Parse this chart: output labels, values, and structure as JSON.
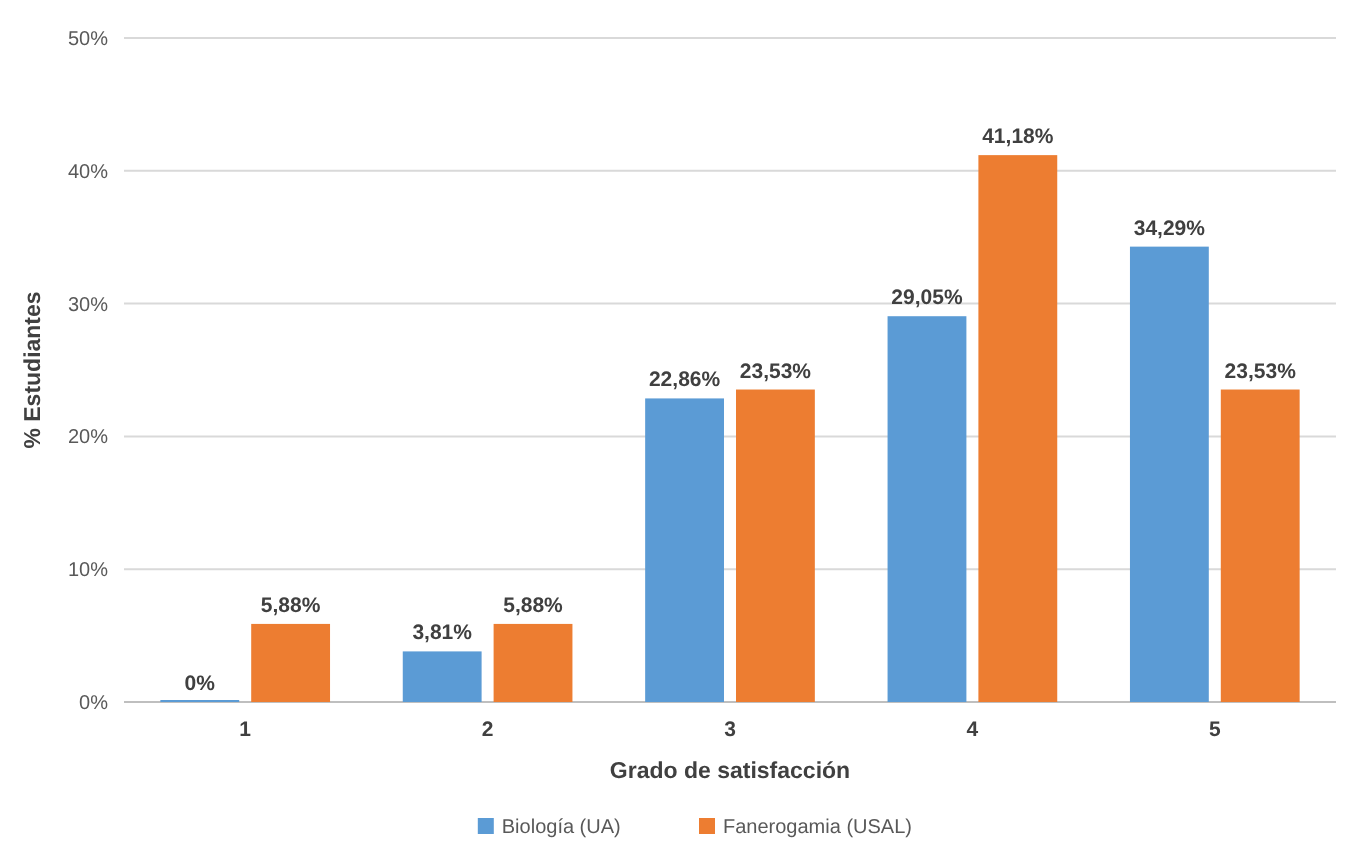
{
  "chart_data": {
    "type": "bar",
    "xlabel": "Grado de satisfacción",
    "ylabel": "% Estudiantes",
    "categories": [
      "1",
      "2",
      "3",
      "4",
      "5"
    ],
    "series": [
      {
        "name": "Biología (UA)",
        "color": "#5b9bd5",
        "values": [
          0,
          3.81,
          22.86,
          29.05,
          34.29
        ],
        "value_labels": [
          "0%",
          "3,81%",
          "22,86%",
          "29,05%",
          "34,29%"
        ]
      },
      {
        "name": "Fanerogamia (USAL)",
        "color": "#ed7d31",
        "values": [
          5.88,
          5.88,
          23.53,
          41.18,
          23.53
        ],
        "value_labels": [
          "5,88%",
          "5,88%",
          "23,53%",
          "41,18%",
          "23,53%"
        ]
      }
    ],
    "ylim": [
      0,
      50
    ],
    "yticks": [
      {
        "value": 0,
        "label": "0%"
      },
      {
        "value": 10,
        "label": "10%"
      },
      {
        "value": 20,
        "label": "20%"
      },
      {
        "value": 30,
        "label": "30%"
      },
      {
        "value": 40,
        "label": "40%"
      },
      {
        "value": 50,
        "label": "50%"
      }
    ],
    "grid": "y",
    "legend": "bottom"
  }
}
